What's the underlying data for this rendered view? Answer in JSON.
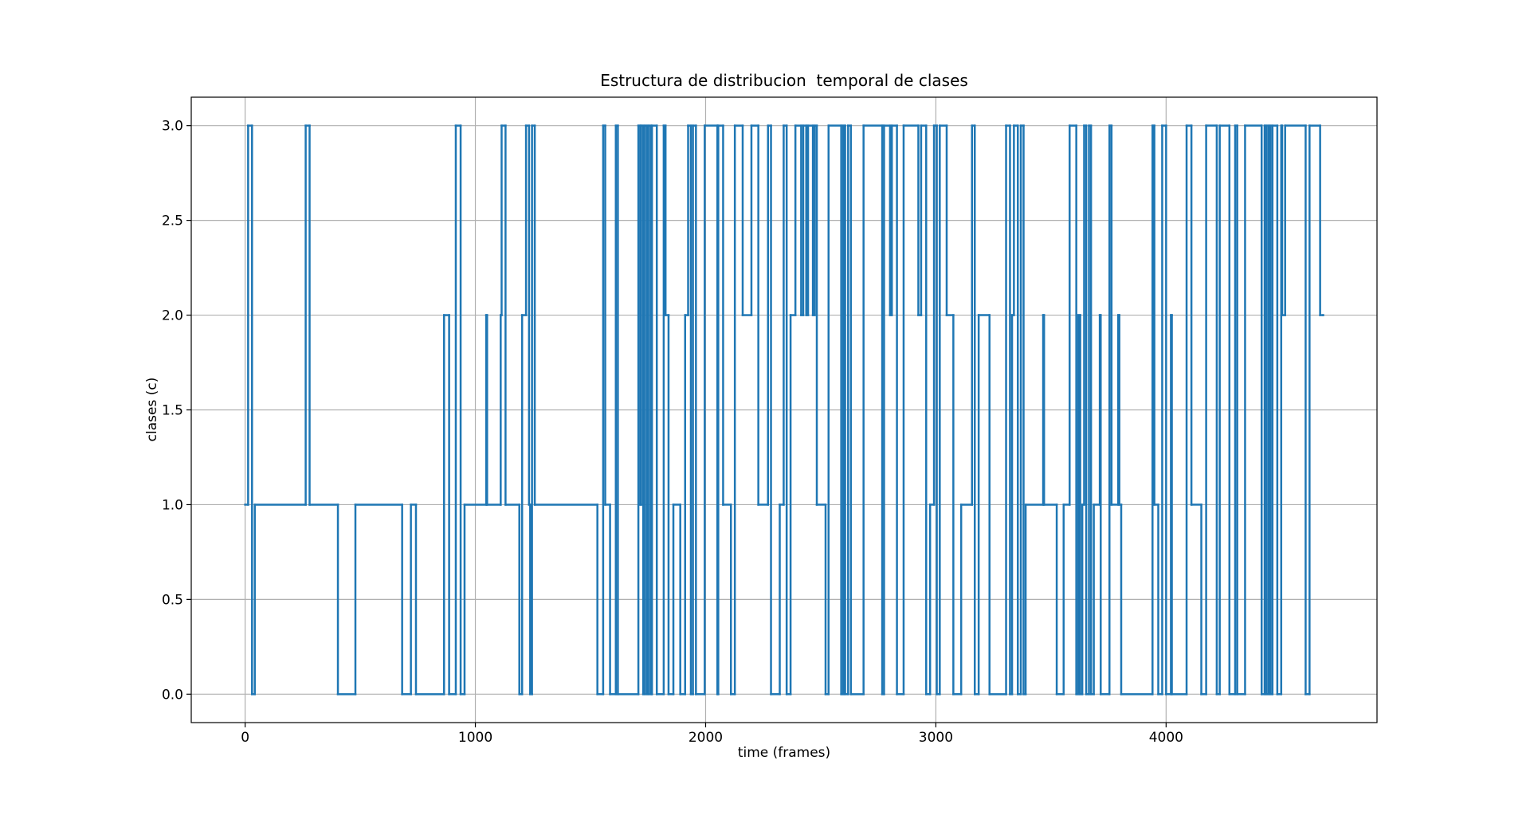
{
  "chart_data": {
    "type": "step",
    "title": "Estructura de distribucion  temporal de clases",
    "xlabel": "time (frames)",
    "ylabel": "clases (c)",
    "color": "#1f77b4",
    "grid": true,
    "xlim": [
      -234,
      4916
    ],
    "ylim": [
      -0.15,
      3.15
    ],
    "xticks": [
      0,
      1000,
      2000,
      3000,
      4000
    ],
    "yticks": [
      {
        "value": 0,
        "label": "0.0"
      },
      {
        "value": 0.5,
        "label": "0.5"
      },
      {
        "value": 1,
        "label": "1.0"
      },
      {
        "value": 1.5,
        "label": "1.5"
      },
      {
        "value": 2,
        "label": "2.0"
      },
      {
        "value": 2.5,
        "label": "2.5"
      },
      {
        "value": 3,
        "label": "3.0"
      }
    ],
    "x": [
      0,
      13,
      30,
      42,
      263,
      280,
      403,
      479,
      682,
      720,
      742,
      864,
      886,
      915,
      936,
      953,
      1047,
      1051,
      1110,
      1114,
      1131,
      1191,
      1203,
      1220,
      1233,
      1238,
      1246,
      1258,
      1530,
      1555,
      1564,
      1585,
      1610,
      1619,
      1708,
      1716,
      1720,
      1729,
      1737,
      1746,
      1754,
      1763,
      1767,
      1788,
      1818,
      1826,
      1839,
      1860,
      1890,
      1911,
      1924,
      1936,
      1945,
      1958,
      1996,
      2051,
      2055,
      2076,
      2110,
      2127,
      2161,
      2199,
      2229,
      2271,
      2284,
      2322,
      2339,
      2352,
      2369,
      2390,
      2415,
      2424,
      2437,
      2445,
      2466,
      2474,
      2483,
      2521,
      2534,
      2589,
      2598,
      2606,
      2619,
      2631,
      2686,
      2767,
      2775,
      2801,
      2809,
      2831,
      2860,
      2924,
      2936,
      2958,
      2975,
      2992,
      3004,
      3017,
      3047,
      3076,
      3110,
      3157,
      3169,
      3186,
      3233,
      3305,
      3322,
      3331,
      3339,
      3356,
      3369,
      3381,
      3390,
      3466,
      3470,
      3525,
      3555,
      3581,
      3610,
      3619,
      3627,
      3636,
      3644,
      3653,
      3665,
      3674,
      3686,
      3712,
      3716,
      3754,
      3763,
      3792,
      3797,
      3805,
      3941,
      3949,
      3966,
      3983,
      4000,
      4021,
      4025,
      4089,
      4110,
      4153,
      4174,
      4220,
      4233,
      4275,
      4300,
      4309,
      4343,
      4415,
      4428,
      4436,
      4445,
      4453,
      4462,
      4483,
      4500,
      4504,
      4517,
      4606,
      4623,
      4669,
      4682
    ],
    "values": [
      1,
      3,
      0,
      1,
      3,
      1,
      0,
      1,
      0,
      1,
      0,
      2,
      0,
      3,
      0,
      1,
      2,
      1,
      2,
      3,
      1,
      0,
      2,
      3,
      1,
      0,
      3,
      1,
      0,
      3,
      1,
      0,
      3,
      0,
      3,
      1,
      3,
      0,
      3,
      0,
      3,
      0,
      3,
      0,
      3,
      2,
      0,
      1,
      0,
      2,
      3,
      0,
      3,
      0,
      3,
      0,
      3,
      1,
      0,
      3,
      2,
      3,
      1,
      3,
      0,
      1,
      3,
      0,
      2,
      3,
      2,
      3,
      2,
      3,
      2,
      3,
      1,
      0,
      3,
      0,
      3,
      0,
      3,
      0,
      3,
      0,
      3,
      2,
      3,
      0,
      3,
      2,
      3,
      0,
      1,
      3,
      0,
      3,
      2,
      0,
      1,
      3,
      0,
      2,
      0,
      3,
      0,
      2,
      3,
      0,
      3,
      0,
      1,
      2,
      1,
      0,
      1,
      3,
      0,
      2,
      0,
      1,
      3,
      0,
      3,
      0,
      1,
      2,
      0,
      3,
      1,
      2,
      1,
      0,
      3,
      1,
      0,
      3,
      0,
      2,
      0,
      3,
      1,
      0,
      3,
      0,
      3,
      0,
      3,
      0,
      3,
      0,
      3,
      0,
      3,
      0,
      3,
      0,
      3,
      2,
      3,
      0,
      3,
      2,
      2
    ]
  }
}
